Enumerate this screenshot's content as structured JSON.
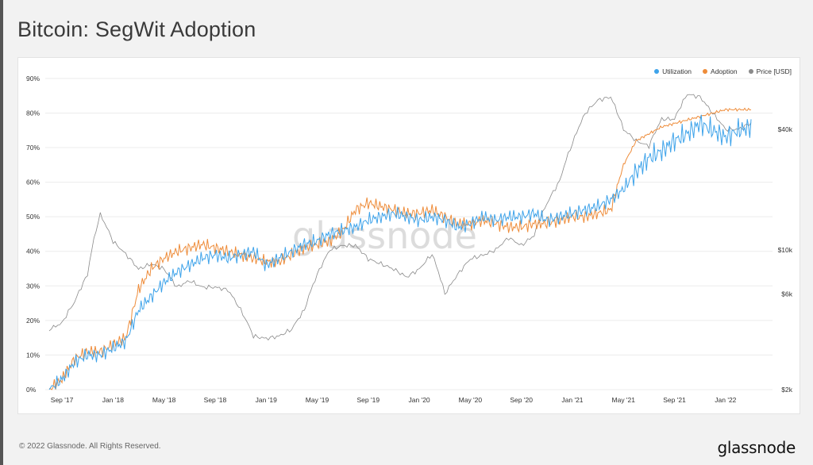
{
  "title": "Bitcoin: SegWit Adoption",
  "footer": {
    "copyright": "© 2022 Glassnode. All Rights Reserved.",
    "brand": "glassnode"
  },
  "watermark": "glassnode",
  "chart_data": {
    "type": "line",
    "title": "Bitcoin: SegWit Adoption",
    "legend": [
      {
        "name": "Utilization",
        "color": "#3ea3ea"
      },
      {
        "name": "Adoption",
        "color": "#ee8c3a"
      },
      {
        "name": "Price [USD]",
        "color": "#8a8a8a"
      }
    ],
    "legend_position": "top-right",
    "grid": true,
    "x_ticks": [
      "Sep '17",
      "Jan '18",
      "May '18",
      "Sep '18",
      "Jan '19",
      "May '19",
      "Sep '19",
      "Jan '20",
      "May '20",
      "Sep '20",
      "Jan '21",
      "May '21",
      "Sep '21",
      "Jan '22"
    ],
    "y_left_ticks": [
      "0%",
      "10%",
      "20%",
      "30%",
      "40%",
      "50%",
      "60%",
      "70%",
      "80%",
      "90%"
    ],
    "y_left_range": [
      0,
      0.9
    ],
    "y_right_ticks": [
      "$2k",
      "$6k",
      "$10k",
      "$40k"
    ],
    "y_right_scale": "log",
    "x": [
      "2017-08",
      "2017-09",
      "2017-10",
      "2017-11",
      "2017-12",
      "2018-01",
      "2018-02",
      "2018-03",
      "2018-04",
      "2018-05",
      "2018-06",
      "2018-07",
      "2018-08",
      "2018-09",
      "2018-10",
      "2018-11",
      "2018-12",
      "2019-01",
      "2019-02",
      "2019-03",
      "2019-04",
      "2019-05",
      "2019-06",
      "2019-07",
      "2019-08",
      "2019-09",
      "2019-10",
      "2019-11",
      "2019-12",
      "2020-01",
      "2020-02",
      "2020-03",
      "2020-04",
      "2020-05",
      "2020-06",
      "2020-07",
      "2020-08",
      "2020-09",
      "2020-10",
      "2020-11",
      "2020-12",
      "2021-01",
      "2021-02",
      "2021-03",
      "2021-04",
      "2021-05",
      "2021-06",
      "2021-07",
      "2021-08",
      "2021-09",
      "2021-10",
      "2021-11",
      "2021-12",
      "2022-01",
      "2022-02",
      "2022-03"
    ],
    "series": [
      {
        "name": "Utilization",
        "color": "#3ea3ea",
        "values": [
          0.0,
          0.03,
          0.08,
          0.1,
          0.1,
          0.12,
          0.14,
          0.23,
          0.27,
          0.31,
          0.34,
          0.36,
          0.38,
          0.39,
          0.38,
          0.39,
          0.4,
          0.36,
          0.38,
          0.4,
          0.42,
          0.43,
          0.45,
          0.46,
          0.47,
          0.49,
          0.5,
          0.51,
          0.5,
          0.49,
          0.5,
          0.49,
          0.47,
          0.48,
          0.5,
          0.49,
          0.5,
          0.5,
          0.51,
          0.49,
          0.5,
          0.51,
          0.52,
          0.53,
          0.55,
          0.58,
          0.63,
          0.67,
          0.69,
          0.72,
          0.74,
          0.77,
          0.75,
          0.73,
          0.75,
          0.76
        ]
      },
      {
        "name": "Adoption",
        "color": "#ee8c3a",
        "values": [
          0.0,
          0.03,
          0.09,
          0.11,
          0.11,
          0.13,
          0.15,
          0.29,
          0.35,
          0.38,
          0.4,
          0.41,
          0.42,
          0.41,
          0.4,
          0.39,
          0.38,
          0.37,
          0.37,
          0.39,
          0.41,
          0.42,
          0.43,
          0.46,
          0.52,
          0.54,
          0.53,
          0.52,
          0.51,
          0.51,
          0.52,
          0.5,
          0.48,
          0.48,
          0.49,
          0.48,
          0.47,
          0.47,
          0.48,
          0.48,
          0.49,
          0.5,
          0.5,
          0.51,
          0.52,
          0.65,
          0.72,
          0.74,
          0.76,
          0.77,
          0.78,
          0.79,
          0.8,
          0.81,
          0.81,
          0.81
        ]
      },
      {
        "name": "Price [USD]",
        "color": "#8a8a8a",
        "values": [
          4000,
          4300,
          5500,
          7500,
          15000,
          11000,
          9500,
          8000,
          8500,
          8000,
          6500,
          7000,
          6500,
          6500,
          6300,
          5000,
          3700,
          3600,
          3700,
          4000,
          5000,
          7500,
          10000,
          10500,
          10500,
          9000,
          8500,
          8000,
          7300,
          8000,
          9500,
          6000,
          7500,
          9000,
          9400,
          10000,
          11500,
          10500,
          11800,
          17000,
          22000,
          34000,
          48000,
          56000,
          58000,
          40000,
          35000,
          33000,
          45000,
          45000,
          60000,
          58000,
          48000,
          40000,
          40000,
          43000
        ]
      }
    ]
  }
}
